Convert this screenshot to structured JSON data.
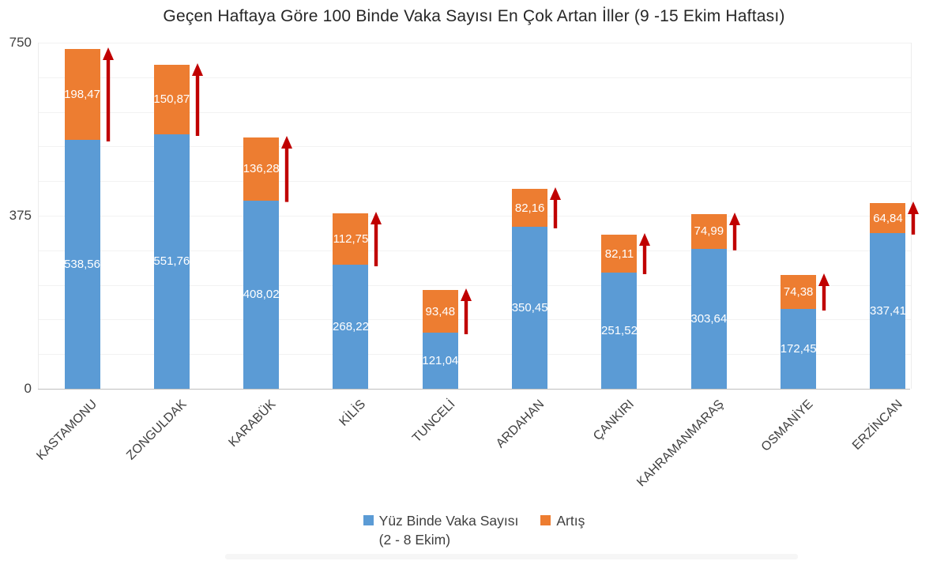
{
  "title": "Geçen Haftaya Göre 100 Binde Vaka Sayısı En Çok Artan İller (9 -15 Ekim Haftası)",
  "chart_data": {
    "type": "bar",
    "stacked": true,
    "title": "Geçen Haftaya Göre 100 Binde Vaka Sayısı En Çok Artan İller (9 -15 Ekim Haftası)",
    "categories": [
      "KASTAMONU",
      "ZONGULDAK",
      "KARABÜK",
      "KİLİS",
      "TUNCELİ",
      "ARDAHAN",
      "ÇANKIRI",
      "KAHRAMANMARAŞ",
      "OSMANİYE",
      "ERZİNCAN"
    ],
    "series": [
      {
        "name": "Yüz Binde Vaka Sayısı (2 - 8 Ekim)",
        "color": "#5B9BD5",
        "values": [
          538.56,
          551.76,
          408.02,
          268.22,
          121.04,
          350.45,
          251.52,
          303.64,
          172.45,
          337.41
        ],
        "labels": [
          "538,56",
          "551,76",
          "408,02",
          "268,22",
          "121,04",
          "350,45",
          "251,52",
          "303,64",
          "172,45",
          "337,41"
        ]
      },
      {
        "name": "Artış",
        "color": "#ED7D31",
        "values": [
          198.47,
          150.87,
          136.28,
          112.75,
          93.48,
          82.16,
          82.11,
          74.99,
          74.38,
          64.84
        ],
        "labels": [
          "198,47",
          "150,87",
          "136,28",
          "112,75",
          "93,48",
          "82,16",
          "82,11",
          "74,99",
          "74,38",
          "64,84"
        ]
      }
    ],
    "ylim": [
      0,
      750
    ],
    "y_ticks": [
      {
        "label": "0",
        "value": 0
      },
      {
        "label": "375",
        "value": 375
      },
      {
        "label": "750",
        "value": 750
      }
    ],
    "gridlines": {
      "on": true,
      "step": 75,
      "color": "#f2f2f2"
    },
    "legend_position": "bottom",
    "annotation": "dark red upward arrow beside the increase segment of every bar",
    "arrow_color": "#C00000"
  },
  "legend": {
    "items": [
      {
        "swatch_color": "#5B9BD5",
        "line1": "Yüz Binde Vaka Sayısı",
        "line2": "(2 - 8 Ekim)"
      },
      {
        "swatch_color": "#ED7D31",
        "line1": "Artış",
        "line2": ""
      }
    ]
  }
}
